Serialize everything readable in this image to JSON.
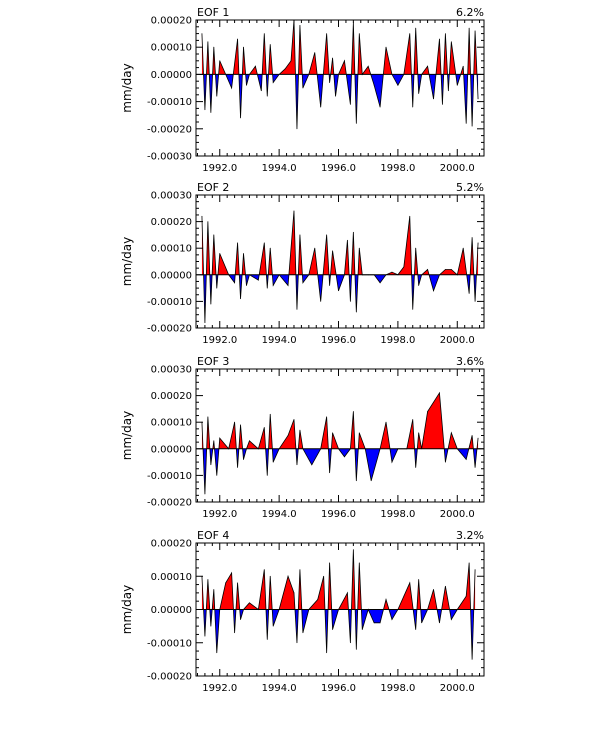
{
  "chart_data": [
    {
      "type": "area",
      "title": "EOF 1",
      "variance": "6.2%",
      "ylabel": "mm/day",
      "xlabel": "",
      "ylim": [
        -0.0003,
        0.0002
      ],
      "yticks": [
        "0.00020",
        "0.00010",
        "0.00000",
        "-0.00010",
        "-0.00020",
        "-0.00030"
      ],
      "ytick_values": [
        0.0002,
        0.0001,
        0.0,
        -0.0001,
        -0.0002,
        -0.0003
      ],
      "xlim": [
        1991.2,
        2000.9
      ],
      "xticks": [
        "1992.0",
        "1994.0",
        "1996.0",
        "1998.0",
        "2000.0"
      ],
      "xtick_values": [
        1992.0,
        1994.0,
        1996.0,
        1998.0,
        2000.0
      ],
      "x": [
        1991.4,
        1991.5,
        1991.6,
        1991.7,
        1991.8,
        1991.9,
        1992.0,
        1992.2,
        1992.4,
        1992.6,
        1992.7,
        1992.8,
        1992.9,
        1993.0,
        1993.2,
        1993.4,
        1993.5,
        1993.6,
        1993.7,
        1993.8,
        1994.0,
        1994.2,
        1994.4,
        1994.5,
        1994.6,
        1994.7,
        1994.8,
        1995.0,
        1995.2,
        1995.4,
        1995.6,
        1995.7,
        1995.8,
        1995.9,
        1996.0,
        1996.2,
        1996.4,
        1996.5,
        1996.6,
        1996.7,
        1996.8,
        1997.0,
        1997.2,
        1997.4,
        1997.6,
        1997.8,
        1998.0,
        1998.2,
        1998.4,
        1998.5,
        1998.6,
        1998.7,
        1998.8,
        1999.0,
        1999.2,
        1999.4,
        1999.5,
        1999.6,
        1999.7,
        1999.8,
        2000.0,
        2000.2,
        2000.3,
        2000.4,
        2000.5,
        2000.6,
        2000.7
      ],
      "values": [
        0.00015,
        -0.00013,
        0.00012,
        -0.00014,
        0.0001,
        -8e-05,
        5e-05,
        0.0,
        -5e-05,
        0.00013,
        -0.00016,
        0.0001,
        -4e-05,
        0.0,
        3e-05,
        -6e-05,
        0.00015,
        -8e-05,
        0.00011,
        -3e-05,
        0.0,
        2e-05,
        5e-05,
        0.0002,
        -0.0002,
        0.00018,
        -5e-05,
        0.0,
        8e-05,
        -0.00012,
        0.00015,
        -3e-05,
        6e-05,
        -8e-05,
        0.0,
        5e-05,
        -0.00011,
        0.00019,
        -0.00018,
        0.00015,
        0.0,
        3e-05,
        -4e-05,
        -0.00012,
        0.0001,
        0.0,
        -4e-05,
        0.0,
        0.00015,
        -0.00012,
        0.00017,
        -7e-05,
        0.0,
        3e-05,
        -9e-05,
        0.00013,
        -0.00011,
        0.00015,
        -6e-05,
        0.00012,
        -4e-05,
        3e-05,
        -0.00018,
        0.00017,
        -0.00019,
        0.00016,
        -9e-05
      ]
    },
    {
      "type": "area",
      "title": "EOF 2",
      "variance": "5.2%",
      "ylabel": "mm/day",
      "xlabel": "",
      "ylim": [
        -0.0002,
        0.0003
      ],
      "yticks": [
        "0.00030",
        "0.00020",
        "0.00010",
        "0.00000",
        "-0.00010",
        "-0.00020"
      ],
      "ytick_values": [
        0.0003,
        0.0002,
        0.0001,
        0.0,
        -0.0001,
        -0.0002
      ],
      "xlim": [
        1991.2,
        2000.9
      ],
      "xticks": [
        "1992.0",
        "1994.0",
        "1996.0",
        "1998.0",
        "2000.0"
      ],
      "xtick_values": [
        1992.0,
        1994.0,
        1996.0,
        1998.0,
        2000.0
      ],
      "x": [
        1991.4,
        1991.5,
        1991.6,
        1991.7,
        1991.8,
        1991.9,
        1992.0,
        1992.3,
        1992.5,
        1992.6,
        1992.7,
        1992.8,
        1992.9,
        1993.0,
        1993.3,
        1993.5,
        1993.6,
        1993.7,
        1993.8,
        1994.0,
        1994.3,
        1994.5,
        1994.6,
        1994.7,
        1994.8,
        1995.0,
        1995.2,
        1995.4,
        1995.6,
        1995.7,
        1995.8,
        1996.0,
        1996.2,
        1996.3,
        1996.4,
        1996.5,
        1996.6,
        1996.7,
        1996.8,
        1997.0,
        1997.2,
        1997.4,
        1997.6,
        1997.8,
        1998.0,
        1998.2,
        1998.4,
        1998.5,
        1998.6,
        1998.7,
        1998.8,
        1999.0,
        1999.2,
        1999.4,
        1999.6,
        1999.8,
        2000.0,
        2000.2,
        2000.4,
        2000.5,
        2000.6,
        2000.7
      ],
      "values": [
        0.00022,
        -0.00018,
        0.0002,
        -0.00011,
        0.00015,
        -5e-05,
        8e-05,
        0.0,
        -3e-05,
        0.00012,
        -9e-05,
        8e-05,
        -4e-05,
        0.0,
        -2e-05,
        0.00012,
        -5e-05,
        0.0001,
        -4e-05,
        0.0,
        -4e-05,
        0.00024,
        -0.00013,
        0.00015,
        -3e-05,
        0.0,
        0.0001,
        -0.0001,
        0.00015,
        -4e-05,
        9e-05,
        -6e-05,
        0.0,
        0.00013,
        -0.0001,
        0.00016,
        -0.00014,
        0.0001,
        0.0,
        0.0,
        0.0,
        -3e-05,
        0.0,
        1e-05,
        0.0,
        3e-05,
        0.00022,
        -0.00013,
        0.0001,
        -4e-05,
        0.0,
        2e-05,
        -6e-05,
        0.0,
        2e-05,
        2e-05,
        0.0,
        0.0001,
        -7e-05,
        0.00014,
        -0.0001,
        0.00012
      ]
    },
    {
      "type": "area",
      "title": "EOF 3",
      "variance": "3.6%",
      "ylabel": "mm/day",
      "xlabel": "",
      "ylim": [
        -0.0002,
        0.0003
      ],
      "yticks": [
        "0.00030",
        "0.00020",
        "0.00010",
        "0.00000",
        "-0.00010",
        "-0.00020"
      ],
      "ytick_values": [
        0.0003,
        0.0002,
        0.0001,
        0.0,
        -0.0001,
        -0.0002
      ],
      "xlim": [
        1991.2,
        2000.9
      ],
      "xticks": [
        "1992.0",
        "1994.0",
        "1996.0",
        "1998.0",
        "2000.0"
      ],
      "xtick_values": [
        1992.0,
        1994.0,
        1996.0,
        1998.0,
        2000.0
      ],
      "x": [
        1991.4,
        1991.5,
        1991.6,
        1991.7,
        1991.8,
        1991.9,
        1992.0,
        1992.3,
        1992.5,
        1992.6,
        1992.7,
        1992.8,
        1992.9,
        1993.0,
        1993.3,
        1993.5,
        1993.6,
        1993.7,
        1993.8,
        1994.0,
        1994.3,
        1994.5,
        1994.6,
        1994.7,
        1994.8,
        1995.1,
        1995.4,
        1995.6,
        1995.7,
        1995.8,
        1996.0,
        1996.2,
        1996.4,
        1996.5,
        1996.6,
        1996.7,
        1996.9,
        1997.1,
        1997.4,
        1997.6,
        1997.8,
        1998.0,
        1998.3,
        1998.5,
        1998.6,
        1998.7,
        1998.8,
        1999.0,
        1999.4,
        1999.6,
        1999.8,
        2000.0,
        2000.3,
        2000.5,
        2000.6,
        2000.7
      ],
      "values": [
        0.0001,
        -0.00017,
        0.00012,
        -6e-05,
        3e-05,
        -0.0001,
        4e-05,
        0.0,
        0.0001,
        -7e-05,
        9e-05,
        -4e-05,
        0.0,
        3e-05,
        0.0,
        8e-05,
        -0.0001,
        0.00013,
        -5e-05,
        0.0,
        5e-05,
        0.00011,
        -6e-05,
        7e-05,
        0.0,
        -6e-05,
        0.0,
        0.00012,
        -9e-05,
        6e-05,
        0.0,
        -3e-05,
        0.0,
        0.00014,
        -0.00012,
        6e-05,
        0.0,
        -0.00012,
        0.0,
        0.0001,
        -5e-05,
        0.0,
        0.0,
        0.00011,
        -7e-05,
        6e-05,
        0.0,
        0.00014,
        0.00021,
        -5e-05,
        6e-05,
        0.0,
        -4e-05,
        5e-05,
        -7e-05,
        4e-05
      ]
    },
    {
      "type": "area",
      "title": "EOF 4",
      "variance": "3.2%",
      "ylabel": "mm/day",
      "xlabel": "",
      "ylim": [
        -0.0002,
        0.0002
      ],
      "yticks": [
        "0.00020",
        "0.00010",
        "0.00000",
        "-0.00010",
        "-0.00020"
      ],
      "ytick_values": [
        0.0002,
        0.0001,
        0.0,
        -0.0001,
        -0.0002
      ],
      "xlim": [
        1991.2,
        2000.9
      ],
      "xticks": [
        "1992.0",
        "1994.0",
        "1996.0",
        "1998.0",
        "2000.0"
      ],
      "xtick_values": [
        1992.0,
        1994.0,
        1996.0,
        1998.0,
        2000.0
      ],
      "x": [
        1991.4,
        1991.5,
        1991.6,
        1991.7,
        1991.8,
        1991.9,
        1992.0,
        1992.2,
        1992.4,
        1992.5,
        1992.6,
        1992.7,
        1992.8,
        1993.0,
        1993.3,
        1993.5,
        1993.6,
        1993.7,
        1993.8,
        1994.0,
        1994.3,
        1994.5,
        1994.6,
        1994.7,
        1994.8,
        1995.0,
        1995.3,
        1995.5,
        1995.6,
        1995.7,
        1995.8,
        1996.0,
        1996.3,
        1996.4,
        1996.5,
        1996.6,
        1996.7,
        1996.8,
        1997.0,
        1997.2,
        1997.4,
        1997.6,
        1997.8,
        1998.0,
        1998.2,
        1998.4,
        1998.6,
        1998.7,
        1998.8,
        1999.0,
        1999.2,
        1999.4,
        1999.6,
        1999.8,
        2000.0,
        2000.3,
        2000.4,
        2000.5,
        2000.6
      ],
      "values": [
        0.0001,
        -8e-05,
        9e-05,
        -5e-05,
        6e-05,
        -0.00013,
        0.0,
        8e-05,
        0.00011,
        -7e-05,
        8e-05,
        -3e-05,
        0.0,
        2e-05,
        0.0,
        0.00012,
        -9e-05,
        0.0001,
        -5e-05,
        0.0,
        0.0001,
        5e-05,
        -0.0001,
        0.00012,
        -7e-05,
        0.0,
        3e-05,
        0.0001,
        -0.00013,
        0.00014,
        -6e-05,
        0.0,
        5e-05,
        -0.0001,
        0.00018,
        -0.00012,
        0.00014,
        -6e-05,
        0.0,
        -4e-05,
        -4e-05,
        3e-05,
        -3e-05,
        0.0,
        4e-05,
        8e-05,
        -6e-05,
        9e-05,
        -4e-05,
        0.0,
        6e-05,
        -4e-05,
        7e-05,
        -3e-05,
        0.0,
        4e-05,
        0.00014,
        -0.00015,
        0.00012
      ]
    }
  ],
  "colors": {
    "positive_fill": "#ff0000",
    "negative_fill": "#0000ff",
    "line": "#000000",
    "axis": "#000000"
  }
}
